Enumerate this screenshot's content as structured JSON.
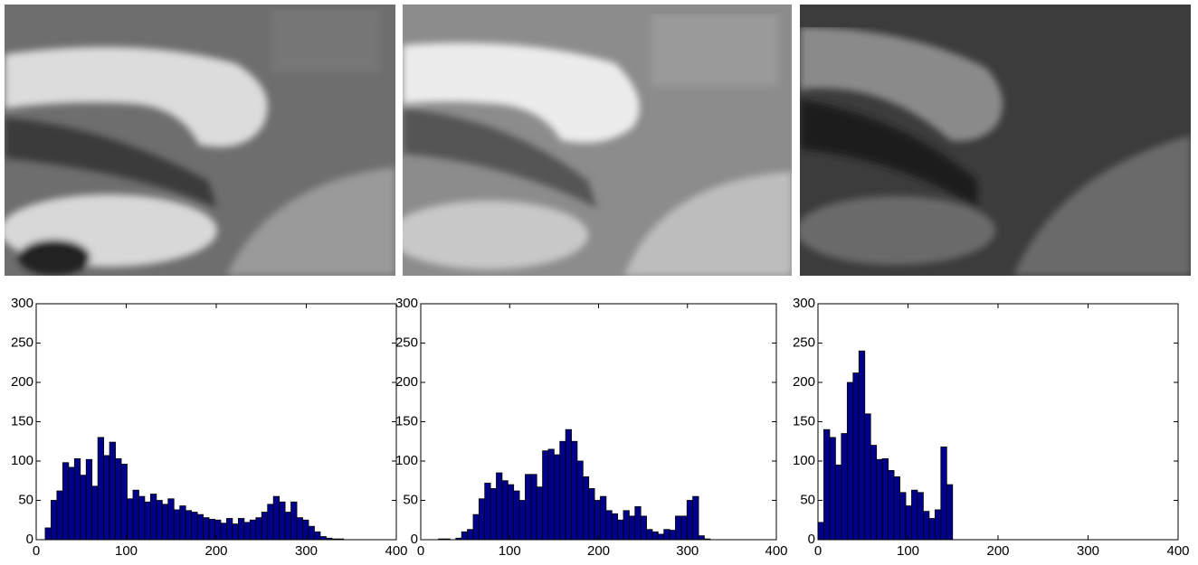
{
  "chart_data": [
    {
      "type": "histogram",
      "color": "#00008b",
      "bins": [
        10,
        16.5,
        23,
        29.5,
        36,
        42.5,
        49,
        55.5,
        62,
        68.5,
        75,
        81.5,
        88,
        94.5,
        101,
        107.5,
        114,
        120.5,
        127,
        133.5,
        140,
        146.5,
        153,
        159.5,
        166,
        172.5,
        179,
        185.5,
        192,
        198.5,
        205,
        211.5,
        218,
        224.5,
        231,
        237.5,
        244,
        250.5,
        257,
        263.5,
        270,
        276.5,
        283,
        289.5,
        296,
        302.5,
        309,
        315.5,
        322,
        328.5,
        335,
        341.5
      ],
      "values": [
        15,
        50,
        62,
        98,
        92,
        103,
        82,
        102,
        68,
        130,
        107,
        124,
        103,
        96,
        52,
        63,
        55,
        48,
        58,
        50,
        45,
        52,
        38,
        43,
        37,
        35,
        32,
        28,
        26,
        25,
        21,
        27,
        20,
        27,
        22,
        25,
        28,
        35,
        45,
        55,
        48,
        35,
        48,
        28,
        25,
        17,
        10,
        4,
        2,
        1,
        1
      ],
      "xlim": [
        0,
        400
      ],
      "ylim": [
        0,
        300
      ],
      "xticks": [
        0,
        100,
        200,
        300,
        400
      ],
      "yticks": [
        0,
        50,
        100,
        150,
        200,
        250,
        300
      ]
    },
    {
      "type": "histogram",
      "color": "#00008b",
      "bins": [
        20,
        26.5,
        33,
        39.5,
        46,
        52.5,
        59,
        65.5,
        72,
        78.5,
        85,
        91.5,
        98,
        104.5,
        111,
        117.5,
        124,
        130.5,
        137,
        143.5,
        150,
        156.5,
        163,
        169.5,
        176,
        182.5,
        189,
        195.5,
        202,
        208.5,
        215,
        221.5,
        228,
        234.5,
        241,
        247.5,
        254,
        260.5,
        267,
        273.5,
        280,
        286.5,
        293,
        299.5,
        306,
        312.5,
        319,
        325.5
      ],
      "values": [
        1,
        1,
        0,
        2,
        10,
        13,
        32,
        52,
        72,
        65,
        85,
        75,
        70,
        62,
        50,
        83,
        83,
        67,
        113,
        115,
        108,
        125,
        140,
        125,
        100,
        80,
        65,
        50,
        55,
        37,
        33,
        25,
        37,
        30,
        42,
        30,
        13,
        10,
        7,
        13,
        12,
        30,
        30,
        50,
        55,
        5,
        1
      ],
      "xlim": [
        0,
        400
      ],
      "ylim": [
        0,
        300
      ],
      "xticks": [
        0,
        100,
        200,
        300,
        400
      ],
      "yticks": [
        0,
        50,
        100,
        150,
        200,
        250,
        300
      ]
    },
    {
      "type": "histogram",
      "color": "#00008b",
      "bins": [
        0,
        6.5,
        13,
        19.5,
        26,
        32.5,
        39,
        45.5,
        52,
        58.5,
        65,
        71.5,
        78,
        84.5,
        91,
        97.5,
        104,
        110.5,
        117,
        123.5,
        130,
        136.5,
        143,
        149.5
      ],
      "values": [
        22,
        140,
        130,
        95,
        135,
        200,
        212,
        240,
        160,
        120,
        102,
        103,
        88,
        80,
        60,
        43,
        63,
        60,
        36,
        27,
        38,
        118,
        70
      ],
      "xlim": [
        0,
        400
      ],
      "ylim": [
        0,
        300
      ],
      "xticks": [
        0,
        100,
        200,
        300,
        400
      ],
      "yticks": [
        0,
        50,
        100,
        150,
        200,
        250,
        300
      ]
    }
  ]
}
